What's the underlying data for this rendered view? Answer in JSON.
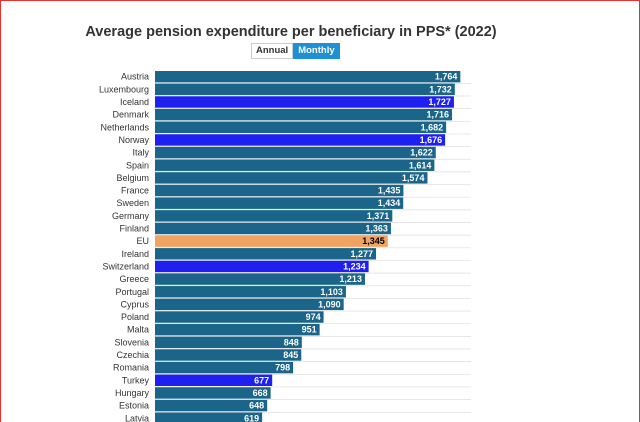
{
  "title": "Average pension expenditure per beneficiary in PPS* (2022)",
  "toggle": {
    "annual_label": "Annual",
    "monthly_label": "Monthly",
    "selected": "Monthly"
  },
  "colors": {
    "default": "#1a6589",
    "efta_candidate": "#1f1ff0",
    "eu_average": "#f0a363",
    "grid": "#dddddd"
  },
  "chart_data": {
    "type": "bar",
    "orientation": "horizontal",
    "title": "Average pension expenditure per beneficiary in PPS* (2022)",
    "categories": [
      "Austria",
      "Luxembourg",
      "Iceland",
      "Denmark",
      "Netherlands",
      "Norway",
      "Italy",
      "Spain",
      "Belgium",
      "France",
      "Sweden",
      "Germany",
      "Finland",
      "EU",
      "Ireland",
      "Switzerland",
      "Greece",
      "Portugal",
      "Cyprus",
      "Poland",
      "Malta",
      "Slovenia",
      "Czechia",
      "Romania",
      "Turkey",
      "Hungary",
      "Estonia",
      "Latvia"
    ],
    "values": [
      1764,
      1732,
      1727,
      1716,
      1682,
      1676,
      1622,
      1614,
      1574,
      1435,
      1434,
      1371,
      1363,
      1345,
      1277,
      1234,
      1213,
      1103,
      1090,
      974,
      951,
      848,
      845,
      798,
      677,
      668,
      648,
      619
    ],
    "value_labels": [
      "1,764",
      "1,732",
      "1,727",
      "1,716",
      "1,682",
      "1,676",
      "1,622",
      "1,614",
      "1,574",
      "1,435",
      "1,434",
      "1,371",
      "1,363",
      "1,345",
      "1,277",
      "1,234",
      "1,213",
      "1,103",
      "1,090",
      "974",
      "951",
      "848",
      "845",
      "798",
      "677",
      "668",
      "648",
      "619"
    ],
    "highlight": [
      "default",
      "default",
      "efta_candidate",
      "default",
      "default",
      "efta_candidate",
      "default",
      "default",
      "default",
      "default",
      "default",
      "default",
      "default",
      "eu_average",
      "default",
      "efta_candidate",
      "default",
      "default",
      "default",
      "default",
      "default",
      "default",
      "default",
      "default",
      "efta_candidate",
      "default",
      "default",
      "default"
    ],
    "xlim": [
      0,
      1800
    ],
    "grid": true,
    "legend": "none"
  }
}
